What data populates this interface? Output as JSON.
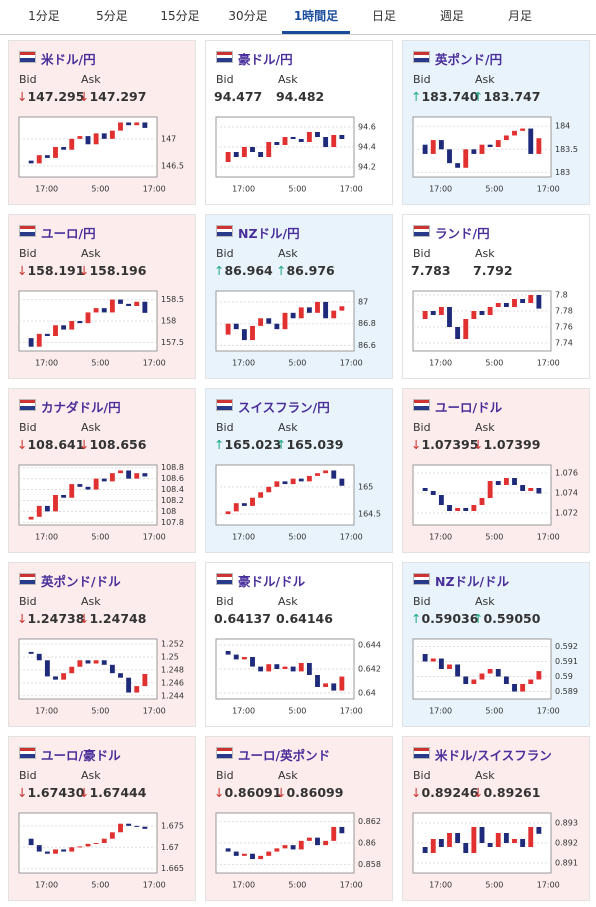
{
  "tabs": [
    "1分足",
    "5分足",
    "15分足",
    "30分足",
    "1時間足",
    "日足",
    "週足",
    "月足"
  ],
  "active_tab": 4,
  "labels": {
    "bid": "Bid",
    "ask": "Ask"
  },
  "xticks": [
    "17:00",
    "5:00",
    "17:00"
  ],
  "cards": [
    {
      "pair": "米ドル/円",
      "arrow": "↓",
      "bid": "147.295",
      "ask": "147.297",
      "ylim": [
        146.3,
        147.4
      ],
      "yticks": [
        146.5,
        147
      ],
      "closes": [
        146.6,
        146.55,
        146.7,
        146.65,
        146.85,
        146.8,
        147.0,
        147.05,
        146.9,
        147.1,
        147.0,
        147.15,
        147.3,
        147.25,
        147.3,
        147.2
      ]
    },
    {
      "pair": "豪ドル/円",
      "bid": "94.477",
      "ask": "94.482",
      "ylim": [
        94.1,
        94.7
      ],
      "yticks": [
        94.2,
        94.4,
        94.6
      ],
      "closes": [
        94.25,
        94.35,
        94.3,
        94.4,
        94.35,
        94.3,
        94.45,
        94.42,
        94.5,
        94.48,
        94.45,
        94.55,
        94.5,
        94.4,
        94.52,
        94.48
      ]
    },
    {
      "pair": "英ポンド/円",
      "arrow": "↑",
      "bid": "183.740",
      "ask": "183.747",
      "ylim": [
        182.9,
        184.2
      ],
      "yticks": [
        183,
        183.5,
        184
      ],
      "closes": [
        183.6,
        183.4,
        183.7,
        183.5,
        183.2,
        183.1,
        183.5,
        183.4,
        183.6,
        183.55,
        183.7,
        183.8,
        183.9,
        183.95,
        183.4,
        183.74
      ]
    },
    {
      "pair": "ユーロ/円",
      "arrow": "↓",
      "bid": "158.191",
      "ask": "158.196",
      "ylim": [
        157.3,
        158.7
      ],
      "yticks": [
        157.5,
        158,
        158.5
      ],
      "closes": [
        157.6,
        157.4,
        157.7,
        157.65,
        157.9,
        157.8,
        158.0,
        157.95,
        158.2,
        158.3,
        158.2,
        158.5,
        158.4,
        158.35,
        158.45,
        158.19
      ]
    },
    {
      "pair": "NZドル/円",
      "arrow": "↑",
      "bid": "86.964",
      "ask": "86.976",
      "ylim": [
        86.55,
        87.1
      ],
      "yticks": [
        86.6,
        86.8,
        87
      ],
      "closes": [
        86.7,
        86.8,
        86.75,
        86.65,
        86.78,
        86.85,
        86.8,
        86.75,
        86.9,
        86.85,
        86.95,
        86.9,
        87.0,
        86.85,
        86.92,
        86.96
      ]
    },
    {
      "pair": "ランド/円",
      "bid": "7.783",
      "ask": "7.792",
      "ylim": [
        7.73,
        7.805
      ],
      "yticks": [
        7.74,
        7.76,
        7.78,
        7.8
      ],
      "closes": [
        7.77,
        7.78,
        7.775,
        7.785,
        7.76,
        7.745,
        7.77,
        7.78,
        7.775,
        7.785,
        7.79,
        7.785,
        7.795,
        7.79,
        7.8,
        7.783
      ]
    },
    {
      "pair": "カナダドル/円",
      "arrow": "↓",
      "bid": "108.641",
      "ask": "108.656",
      "ylim": [
        107.75,
        108.85
      ],
      "yticks": [
        107.8,
        108,
        108.2,
        108.4,
        108.6,
        108.8
      ],
      "closes": [
        107.85,
        107.9,
        108.1,
        108.0,
        108.3,
        108.25,
        108.5,
        108.45,
        108.4,
        108.6,
        108.55,
        108.7,
        108.75,
        108.6,
        108.7,
        108.64
      ]
    },
    {
      "pair": "スイスフラン/円",
      "arrow": "↑",
      "bid": "165.023",
      "ask": "165.039",
      "ylim": [
        164.3,
        165.4
      ],
      "yticks": [
        164.5,
        165
      ],
      "closes": [
        164.5,
        164.55,
        164.7,
        164.65,
        164.8,
        164.9,
        165.0,
        165.1,
        165.05,
        165.15,
        165.1,
        165.2,
        165.25,
        165.3,
        165.15,
        165.02
      ]
    },
    {
      "pair": "ユーロ/ドル",
      "arrow": "↓",
      "bid": "1.07395",
      "ask": "1.07399",
      "ylim": [
        1.0708,
        1.0768
      ],
      "yticks": [
        1.072,
        1.074,
        1.076
      ],
      "closes": [
        1.0745,
        1.0742,
        1.0738,
        1.0728,
        1.0722,
        1.0725,
        1.0722,
        1.0728,
        1.0735,
        1.0752,
        1.0748,
        1.0755,
        1.0748,
        1.0742,
        1.0745,
        1.07395
      ]
    },
    {
      "pair": "英ポンド/ドル",
      "arrow": "↓",
      "bid": "1.24738",
      "ask": "1.24748",
      "ylim": [
        1.2435,
        1.2528
      ],
      "yticks": [
        1.244,
        1.246,
        1.248,
        1.25,
        1.252
      ],
      "closes": [
        1.2508,
        1.2505,
        1.2495,
        1.247,
        1.2465,
        1.2475,
        1.2485,
        1.2495,
        1.249,
        1.2495,
        1.2488,
        1.2475,
        1.2468,
        1.2445,
        1.2455,
        1.24738
      ]
    },
    {
      "pair": "豪ドル/ドル",
      "bid": "0.64137",
      "ask": "0.64146",
      "ylim": [
        0.6395,
        0.6445
      ],
      "yticks": [
        0.64,
        0.642,
        0.644
      ],
      "closes": [
        0.6435,
        0.6432,
        0.6428,
        0.643,
        0.6422,
        0.6418,
        0.6424,
        0.642,
        0.6422,
        0.6418,
        0.6425,
        0.6415,
        0.6405,
        0.6408,
        0.6402,
        0.64137
      ]
    },
    {
      "pair": "NZドル/ドル",
      "arrow": "↑",
      "bid": "0.59036",
      "ask": "0.59050",
      "ylim": [
        0.5885,
        0.5925
      ],
      "yticks": [
        0.589,
        0.59,
        0.591,
        0.592
      ],
      "closes": [
        0.5915,
        0.591,
        0.5912,
        0.5905,
        0.5908,
        0.59,
        0.5895,
        0.5898,
        0.5902,
        0.5905,
        0.59,
        0.5895,
        0.589,
        0.5895,
        0.5898,
        0.59036
      ]
    },
    {
      "pair": "ユーロ/豪ドル",
      "arrow": "↓",
      "bid": "1.67430",
      "ask": "1.67444",
      "ylim": [
        1.664,
        1.678
      ],
      "yticks": [
        1.665,
        1.67,
        1.675
      ],
      "closes": [
        1.672,
        1.6705,
        1.669,
        1.6685,
        1.6695,
        1.669,
        1.67,
        1.6702,
        1.6708,
        1.671,
        1.672,
        1.6735,
        1.6755,
        1.675,
        1.6748,
        1.6743
      ]
    },
    {
      "pair": "ユーロ/英ポンド",
      "arrow": "↓",
      "bid": "0.86091",
      "ask": "0.86099",
      "ylim": [
        0.8572,
        0.8628
      ],
      "yticks": [
        0.858,
        0.86,
        0.862
      ],
      "closes": [
        0.8595,
        0.8592,
        0.8588,
        0.859,
        0.8585,
        0.8588,
        0.8592,
        0.8595,
        0.8598,
        0.8594,
        0.8602,
        0.8605,
        0.8598,
        0.8602,
        0.8615,
        0.86091
      ]
    },
    {
      "pair": "米ドル/スイスフラン",
      "arrow": "↓",
      "bid": "0.89246",
      "ask": "0.89261",
      "ylim": [
        0.8905,
        0.8935
      ],
      "yticks": [
        0.891,
        0.892,
        0.893
      ],
      "closes": [
        0.8918,
        0.8915,
        0.8922,
        0.8918,
        0.8925,
        0.892,
        0.8915,
        0.8928,
        0.892,
        0.8918,
        0.8925,
        0.892,
        0.8922,
        0.8918,
        0.8928,
        0.89246
      ]
    }
  ]
}
